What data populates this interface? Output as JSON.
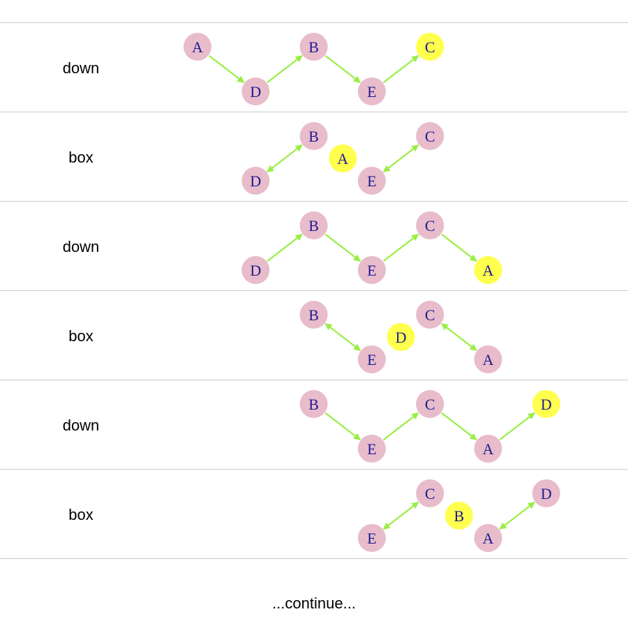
{
  "colors": {
    "node": "#e8bccb",
    "highlight": "#ffff4d",
    "edge": "#99ee44",
    "node_text": "#1f1b8f",
    "rule": "#c8c8c8"
  },
  "rows": [
    {
      "label": "down",
      "nodes": [
        {
          "id": "A",
          "col": 0,
          "level": "up"
        },
        {
          "id": "D",
          "col": 1,
          "level": "down"
        },
        {
          "id": "B",
          "col": 2,
          "level": "up"
        },
        {
          "id": "E",
          "col": 3,
          "level": "down"
        },
        {
          "id": "C",
          "col": 4,
          "level": "up",
          "highlight": true
        }
      ],
      "edges": [
        {
          "from": "A",
          "to": "D",
          "dir": "forward"
        },
        {
          "from": "D",
          "to": "B",
          "dir": "forward"
        },
        {
          "from": "B",
          "to": "E",
          "dir": "forward"
        },
        {
          "from": "E",
          "to": "C",
          "dir": "forward"
        }
      ]
    },
    {
      "label": "box",
      "nodes": [
        {
          "id": "D",
          "col": 1,
          "level": "down"
        },
        {
          "id": "B",
          "col": 2,
          "level": "up"
        },
        {
          "id": "A",
          "col": 2.5,
          "level": "mid",
          "highlight": true
        },
        {
          "id": "E",
          "col": 3,
          "level": "down"
        },
        {
          "id": "C",
          "col": 4,
          "level": "up"
        }
      ],
      "edges": [
        {
          "from": "D",
          "to": "B",
          "dir": "both"
        },
        {
          "from": "E",
          "to": "C",
          "dir": "both"
        }
      ]
    },
    {
      "label": "down",
      "nodes": [
        {
          "id": "D",
          "col": 1,
          "level": "down"
        },
        {
          "id": "B",
          "col": 2,
          "level": "up"
        },
        {
          "id": "E",
          "col": 3,
          "level": "down"
        },
        {
          "id": "C",
          "col": 4,
          "level": "up"
        },
        {
          "id": "A",
          "col": 5,
          "level": "down",
          "highlight": true
        }
      ],
      "edges": [
        {
          "from": "D",
          "to": "B",
          "dir": "forward"
        },
        {
          "from": "B",
          "to": "E",
          "dir": "forward"
        },
        {
          "from": "E",
          "to": "C",
          "dir": "forward"
        },
        {
          "from": "C",
          "to": "A",
          "dir": "forward"
        }
      ]
    },
    {
      "label": "box",
      "nodes": [
        {
          "id": "B",
          "col": 2,
          "level": "up"
        },
        {
          "id": "E",
          "col": 3,
          "level": "down"
        },
        {
          "id": "D",
          "col": 3.5,
          "level": "mid",
          "highlight": true
        },
        {
          "id": "C",
          "col": 4,
          "level": "up"
        },
        {
          "id": "A",
          "col": 5,
          "level": "down"
        }
      ],
      "edges": [
        {
          "from": "B",
          "to": "E",
          "dir": "both"
        },
        {
          "from": "C",
          "to": "A",
          "dir": "both"
        }
      ]
    },
    {
      "label": "down",
      "nodes": [
        {
          "id": "B",
          "col": 2,
          "level": "up"
        },
        {
          "id": "E",
          "col": 3,
          "level": "down"
        },
        {
          "id": "C",
          "col": 4,
          "level": "up"
        },
        {
          "id": "A",
          "col": 5,
          "level": "down"
        },
        {
          "id": "D",
          "col": 6,
          "level": "up",
          "highlight": true
        }
      ],
      "edges": [
        {
          "from": "B",
          "to": "E",
          "dir": "forward"
        },
        {
          "from": "E",
          "to": "C",
          "dir": "forward"
        },
        {
          "from": "C",
          "to": "A",
          "dir": "forward"
        },
        {
          "from": "A",
          "to": "D",
          "dir": "forward"
        }
      ]
    },
    {
      "label": "box",
      "nodes": [
        {
          "id": "E",
          "col": 3,
          "level": "down"
        },
        {
          "id": "C",
          "col": 4,
          "level": "up"
        },
        {
          "id": "B",
          "col": 4.5,
          "level": "mid",
          "highlight": true
        },
        {
          "id": "A",
          "col": 5,
          "level": "down"
        },
        {
          "id": "D",
          "col": 6,
          "level": "up"
        }
      ],
      "edges": [
        {
          "from": "E",
          "to": "C",
          "dir": "both"
        },
        {
          "from": "A",
          "to": "D",
          "dir": "both"
        }
      ]
    }
  ],
  "footer": "...continue..."
}
